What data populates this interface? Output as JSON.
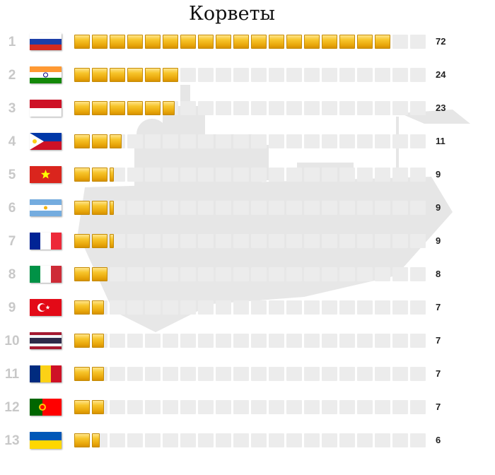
{
  "title": "Корветы",
  "colors": {
    "filled_cell": "#f2b81a",
    "empty_cell": "#ececec",
    "rank_text": "#c8c8c8",
    "ship_silhouette": "#e3e3e3"
  },
  "chart_data": {
    "type": "bar",
    "title": "Корветы",
    "units_per_cell": 4,
    "cells_total": 20,
    "categories": [
      "1",
      "2",
      "3",
      "4",
      "5",
      "6",
      "7",
      "8",
      "9",
      "10",
      "11",
      "12",
      "13"
    ],
    "flags": [
      "Russia",
      "India",
      "Indonesia",
      "Philippines",
      "Vietnam",
      "Argentina",
      "France",
      "Italy",
      "Turkey",
      "Thailand",
      "Romania",
      "Portugal",
      "Ukraine"
    ],
    "values": [
      72,
      24,
      23,
      11,
      9,
      9,
      9,
      8,
      7,
      7,
      7,
      7,
      6
    ]
  }
}
